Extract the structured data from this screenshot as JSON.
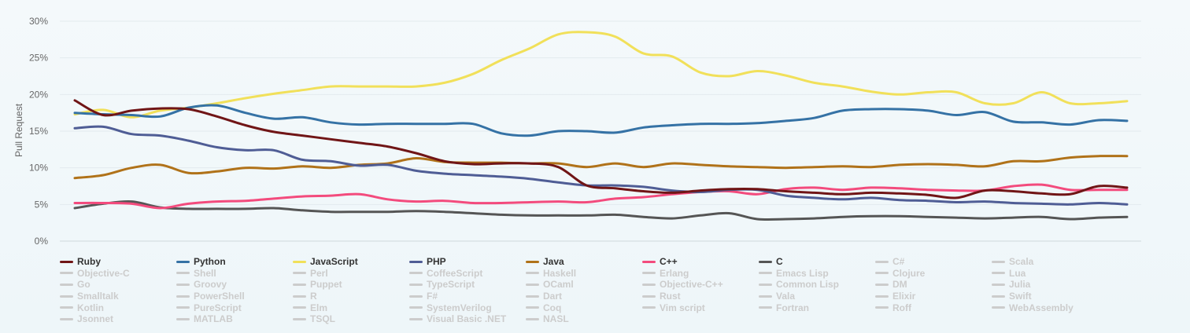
{
  "chart_data": {
    "type": "line",
    "ylabel": "Pull Request",
    "ylim": [
      0,
      30
    ],
    "y_ticks": [
      "0%",
      "5%",
      "10%",
      "15%",
      "20%",
      "25%",
      "30%"
    ],
    "grid": "horizontal",
    "legend_position": "bottom",
    "x_count": 38,
    "series": [
      {
        "name": "Ruby",
        "color": "#701516",
        "active": true,
        "values": [
          19.2,
          17.2,
          17.8,
          18.1,
          18.0,
          17.0,
          15.8,
          14.9,
          14.4,
          13.9,
          13.4,
          12.9,
          12.0,
          10.9,
          10.5,
          10.6,
          10.6,
          10.1,
          7.6,
          7.2,
          6.8,
          6.6,
          6.9,
          7.1,
          7.1,
          6.8,
          6.6,
          6.4,
          6.6,
          6.5,
          6.3,
          5.9,
          6.9,
          6.8,
          6.5,
          6.4,
          7.5,
          7.3
        ]
      },
      {
        "name": "Python",
        "color": "#3572A5",
        "active": true,
        "values": [
          17.5,
          17.3,
          17.2,
          17.0,
          18.2,
          18.5,
          17.5,
          16.7,
          16.9,
          16.2,
          15.9,
          16.0,
          16.0,
          16.0,
          16.0,
          14.7,
          14.4,
          15.0,
          15.0,
          14.8,
          15.5,
          15.8,
          16.0,
          16.0,
          16.1,
          16.4,
          16.8,
          17.8,
          18.0,
          18.0,
          17.8,
          17.2,
          17.6,
          16.3,
          16.2,
          15.9,
          16.5,
          16.4
        ]
      },
      {
        "name": "JavaScript",
        "color": "#f1e05a",
        "active": true,
        "values": [
          17.3,
          17.9,
          16.9,
          17.8,
          18.2,
          18.8,
          19.5,
          20.1,
          20.6,
          21.1,
          21.1,
          21.1,
          21.1,
          21.6,
          22.8,
          24.7,
          26.3,
          28.2,
          28.5,
          27.9,
          25.6,
          25.2,
          23.0,
          22.5,
          23.2,
          22.6,
          21.6,
          21.1,
          20.4,
          20.0,
          20.3,
          20.3,
          18.8,
          18.8,
          20.3,
          18.8,
          18.8,
          19.1
        ]
      },
      {
        "name": "PHP",
        "color": "#4F5D95",
        "active": true,
        "values": [
          15.4,
          15.6,
          14.6,
          14.4,
          13.7,
          12.8,
          12.4,
          12.4,
          11.1,
          10.9,
          10.3,
          10.4,
          9.6,
          9.2,
          9.0,
          8.8,
          8.5,
          8.0,
          7.6,
          7.6,
          7.4,
          6.9,
          6.7,
          7.0,
          7.0,
          6.2,
          5.9,
          5.7,
          5.9,
          5.6,
          5.5,
          5.3,
          5.4,
          5.2,
          5.1,
          5.0,
          5.2,
          5.0
        ]
      },
      {
        "name": "Java",
        "color": "#b07219",
        "active": true,
        "values": [
          8.6,
          9.0,
          10.0,
          10.4,
          9.3,
          9.5,
          10.0,
          9.9,
          10.2,
          10.0,
          10.4,
          10.6,
          11.3,
          10.8,
          10.7,
          10.7,
          10.6,
          10.6,
          10.1,
          10.6,
          10.1,
          10.6,
          10.4,
          10.2,
          10.1,
          10.0,
          10.1,
          10.2,
          10.1,
          10.4,
          10.5,
          10.4,
          10.2,
          10.9,
          10.9,
          11.4,
          11.6,
          11.6
        ]
      },
      {
        "name": "C++",
        "color": "#f34b7d",
        "active": true,
        "values": [
          5.2,
          5.2,
          5.1,
          4.5,
          5.1,
          5.4,
          5.5,
          5.8,
          6.1,
          6.2,
          6.4,
          5.7,
          5.4,
          5.5,
          5.2,
          5.2,
          5.3,
          5.4,
          5.3,
          5.8,
          6.0,
          6.4,
          6.7,
          6.8,
          6.4,
          7.1,
          7.3,
          7.0,
          7.3,
          7.2,
          7.0,
          6.9,
          6.9,
          7.5,
          7.7,
          7.0,
          7.0,
          7.0
        ]
      },
      {
        "name": "C",
        "color": "#555555",
        "active": true,
        "values": [
          4.5,
          5.1,
          5.4,
          4.6,
          4.4,
          4.4,
          4.4,
          4.5,
          4.2,
          4.0,
          4.0,
          4.0,
          4.1,
          4.0,
          3.8,
          3.6,
          3.5,
          3.5,
          3.5,
          3.6,
          3.3,
          3.1,
          3.5,
          3.8,
          3.0,
          3.0,
          3.1,
          3.3,
          3.4,
          3.4,
          3.3,
          3.2,
          3.1,
          3.2,
          3.3,
          3.0,
          3.2,
          3.3
        ]
      },
      {
        "name": "C#",
        "color": "#cccccc",
        "active": false
      },
      {
        "name": "Scala",
        "color": "#cccccc",
        "active": false
      },
      {
        "name": "Objective-C",
        "color": "#cccccc",
        "active": false
      },
      {
        "name": "Shell",
        "color": "#cccccc",
        "active": false
      },
      {
        "name": "Perl",
        "color": "#cccccc",
        "active": false
      },
      {
        "name": "CoffeeScript",
        "color": "#cccccc",
        "active": false
      },
      {
        "name": "Haskell",
        "color": "#cccccc",
        "active": false
      },
      {
        "name": "Erlang",
        "color": "#cccccc",
        "active": false
      },
      {
        "name": "Emacs Lisp",
        "color": "#cccccc",
        "active": false
      },
      {
        "name": "Clojure",
        "color": "#cccccc",
        "active": false
      },
      {
        "name": "Lua",
        "color": "#cccccc",
        "active": false
      },
      {
        "name": "Go",
        "color": "#cccccc",
        "active": false
      },
      {
        "name": "Groovy",
        "color": "#cccccc",
        "active": false
      },
      {
        "name": "Puppet",
        "color": "#cccccc",
        "active": false
      },
      {
        "name": "TypeScript",
        "color": "#cccccc",
        "active": false
      },
      {
        "name": "OCaml",
        "color": "#cccccc",
        "active": false
      },
      {
        "name": "Objective-C++",
        "color": "#cccccc",
        "active": false
      },
      {
        "name": "Common Lisp",
        "color": "#cccccc",
        "active": false
      },
      {
        "name": "DM",
        "color": "#cccccc",
        "active": false
      },
      {
        "name": "Julia",
        "color": "#cccccc",
        "active": false
      },
      {
        "name": "Smalltalk",
        "color": "#cccccc",
        "active": false
      },
      {
        "name": "PowerShell",
        "color": "#cccccc",
        "active": false
      },
      {
        "name": "R",
        "color": "#cccccc",
        "active": false
      },
      {
        "name": "F#",
        "color": "#cccccc",
        "active": false
      },
      {
        "name": "Dart",
        "color": "#cccccc",
        "active": false
      },
      {
        "name": "Rust",
        "color": "#cccccc",
        "active": false
      },
      {
        "name": "Vala",
        "color": "#cccccc",
        "active": false
      },
      {
        "name": "Elixir",
        "color": "#cccccc",
        "active": false
      },
      {
        "name": "Swift",
        "color": "#cccccc",
        "active": false
      },
      {
        "name": "Kotlin",
        "color": "#cccccc",
        "active": false
      },
      {
        "name": "PureScript",
        "color": "#cccccc",
        "active": false
      },
      {
        "name": "Elm",
        "color": "#cccccc",
        "active": false
      },
      {
        "name": "SystemVerilog",
        "color": "#cccccc",
        "active": false
      },
      {
        "name": "Coq",
        "color": "#cccccc",
        "active": false
      },
      {
        "name": "Vim script",
        "color": "#cccccc",
        "active": false
      },
      {
        "name": "Fortran",
        "color": "#cccccc",
        "active": false
      },
      {
        "name": "Roff",
        "color": "#cccccc",
        "active": false
      },
      {
        "name": "WebAssembly",
        "color": "#cccccc",
        "active": false
      },
      {
        "name": "Jsonnet",
        "color": "#cccccc",
        "active": false
      },
      {
        "name": "MATLAB",
        "color": "#cccccc",
        "active": false
      },
      {
        "name": "TSQL",
        "color": "#cccccc",
        "active": false
      },
      {
        "name": "Visual Basic .NET",
        "color": "#cccccc",
        "active": false
      },
      {
        "name": "NASL",
        "color": "#cccccc",
        "active": false
      }
    ]
  }
}
